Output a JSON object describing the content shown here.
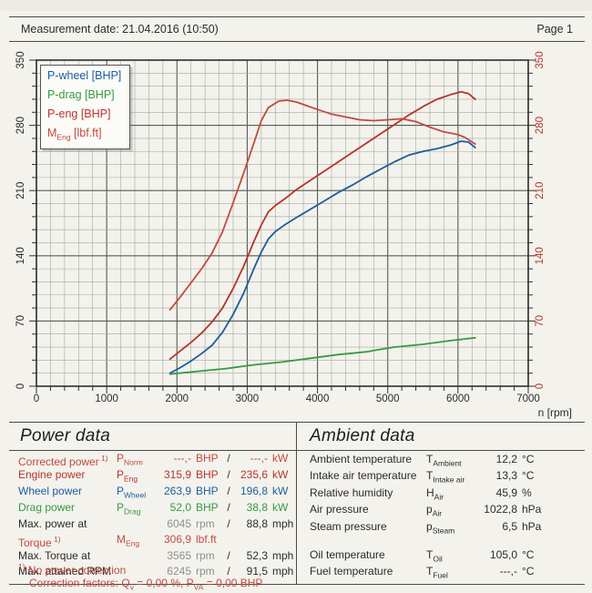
{
  "header": {
    "measurement": "Measurement date: 21.04.2016 (10:50)",
    "page": "Page 1"
  },
  "colors": {
    "red": "#b5342c",
    "red_light": "#c14b40",
    "blue": "#1e5d9e",
    "green": "#379a44",
    "black": "#2b2b2b",
    "dim": "#8f8f8f",
    "grid_minor": "#a4aaa1",
    "grid_major": "#565d55",
    "frame": "#2e2e2e",
    "left_axis_text": "#2b2b2b",
    "right_axis_text": "#b23b32"
  },
  "chart_data": {
    "type": "line",
    "title": "",
    "xlabel": "n [rpm]",
    "ylabel": "",
    "xlim": [
      0,
      7000
    ],
    "ylim": [
      0,
      350
    ],
    "x_minor": 200,
    "x_major": 1000,
    "y_minor": 14,
    "y_major": 70,
    "x_ticks": [
      0,
      1000,
      2000,
      3000,
      4000,
      5000,
      6000,
      7000
    ],
    "y_ticks_left": [
      0,
      70,
      140,
      210,
      280,
      350
    ],
    "y_ticks_right": [
      0,
      70,
      140,
      210,
      280,
      350
    ],
    "grid": true,
    "legend_position": "top-left",
    "legend": [
      {
        "pre": "P-wheel [BHP]"
      },
      {
        "pre": "P-drag [BHP]"
      },
      {
        "pre": "P-eng [BHP]"
      },
      {
        "pre": "M",
        "sub": "Eng",
        "post": " [lbf.ft]"
      }
    ],
    "series": [
      {
        "name": "P-wheel [BHP]",
        "color": "#1e5d9e",
        "points": [
          [
            1900,
            14
          ],
          [
            2050,
            20
          ],
          [
            2200,
            27
          ],
          [
            2350,
            35
          ],
          [
            2500,
            44
          ],
          [
            2650,
            58
          ],
          [
            2800,
            77
          ],
          [
            2950,
            100
          ],
          [
            3100,
            127
          ],
          [
            3200,
            144
          ],
          [
            3300,
            158
          ],
          [
            3400,
            166
          ],
          [
            3550,
            174
          ],
          [
            3700,
            181
          ],
          [
            3900,
            190
          ],
          [
            4100,
            199
          ],
          [
            4300,
            208
          ],
          [
            4500,
            216
          ],
          [
            4700,
            225
          ],
          [
            4900,
            233
          ],
          [
            5100,
            241
          ],
          [
            5300,
            248
          ],
          [
            5500,
            252
          ],
          [
            5700,
            255
          ],
          [
            5900,
            259
          ],
          [
            6045,
            263
          ],
          [
            6150,
            262
          ],
          [
            6245,
            256
          ]
        ]
      },
      {
        "name": "P-drag [BHP]",
        "color": "#379a44",
        "points": [
          [
            1900,
            13
          ],
          [
            2300,
            16
          ],
          [
            2700,
            19
          ],
          [
            3100,
            23
          ],
          [
            3500,
            26
          ],
          [
            3900,
            30
          ],
          [
            4300,
            34
          ],
          [
            4700,
            37
          ],
          [
            4850,
            39
          ],
          [
            5100,
            42
          ],
          [
            5500,
            45
          ],
          [
            5900,
            49
          ],
          [
            6245,
            52
          ]
        ]
      },
      {
        "name": "P-eng [BHP]",
        "color": "#b5342c",
        "points": [
          [
            1900,
            29
          ],
          [
            2050,
            38
          ],
          [
            2200,
            47
          ],
          [
            2350,
            57
          ],
          [
            2500,
            69
          ],
          [
            2650,
            84
          ],
          [
            2800,
            105
          ],
          [
            2950,
            129
          ],
          [
            3100,
            156
          ],
          [
            3200,
            173
          ],
          [
            3300,
            187
          ],
          [
            3400,
            194
          ],
          [
            3550,
            202
          ],
          [
            3700,
            211
          ],
          [
            3900,
            221
          ],
          [
            4100,
            231
          ],
          [
            4300,
            241
          ],
          [
            4500,
            251
          ],
          [
            4700,
            261
          ],
          [
            4900,
            271
          ],
          [
            5100,
            281
          ],
          [
            5300,
            291
          ],
          [
            5500,
            300
          ],
          [
            5700,
            308
          ],
          [
            5900,
            313
          ],
          [
            6045,
            316
          ],
          [
            6150,
            314
          ],
          [
            6245,
            308
          ]
        ]
      },
      {
        "name": "M_Eng [lbf.ft]",
        "color": "#c14b40",
        "points": [
          [
            1900,
            82
          ],
          [
            2050,
            96
          ],
          [
            2200,
            111
          ],
          [
            2350,
            126
          ],
          [
            2500,
            143
          ],
          [
            2650,
            166
          ],
          [
            2800,
            197
          ],
          [
            2950,
            229
          ],
          [
            3100,
            262
          ],
          [
            3200,
            285
          ],
          [
            3300,
            299
          ],
          [
            3450,
            306
          ],
          [
            3565,
            307
          ],
          [
            3700,
            305
          ],
          [
            3850,
            301
          ],
          [
            4000,
            297
          ],
          [
            4200,
            292
          ],
          [
            4400,
            289
          ],
          [
            4600,
            286
          ],
          [
            4800,
            285
          ],
          [
            5000,
            286
          ],
          [
            5200,
            287
          ],
          [
            5400,
            284
          ],
          [
            5600,
            278
          ],
          [
            5800,
            273
          ],
          [
            6000,
            270
          ],
          [
            6100,
            267
          ],
          [
            6245,
            260
          ]
        ]
      }
    ]
  },
  "power": {
    "title": "Power data",
    "rows": [
      {
        "label": "Corrected power",
        "sup": "1)",
        "sym": "P",
        "sub": "Norm",
        "v1": "---,-",
        "u1": "BHP",
        "slash": "/",
        "v2": "---,-",
        "u2": "kW",
        "color": "red_light"
      },
      {
        "label": "Engine power",
        "sym": "P",
        "sub": "Eng",
        "v1": "315,9",
        "u1": "BHP",
        "slash": "/",
        "v2": "235,6",
        "u2": "kW",
        "color": "red"
      },
      {
        "label": "Wheel power",
        "sym": "P",
        "sub": "Wheel",
        "v1": "263,9",
        "u1": "BHP",
        "slash": "/",
        "v2": "196,8",
        "u2": "kW",
        "color": "blue"
      },
      {
        "label": "Drag power",
        "sym": "P",
        "sub": "Drag",
        "v1": "52,0",
        "u1": "BHP",
        "slash": "/",
        "v2": "38,8",
        "u2": "kW",
        "color": "green"
      },
      {
        "label": "Max. power at",
        "v1": "6045",
        "u1": "rpm",
        "slash": "/",
        "v2": "88,8",
        "u2": "mph",
        "color": "black",
        "dim_first": true
      },
      {
        "label": "Torque",
        "sup": "1)",
        "sym": "M",
        "sub": "Eng",
        "v1": "306,9",
        "u1": "lbf.ft",
        "color": "red_light",
        "gap": 4
      },
      {
        "label": "Max. Torque at",
        "v1": "3565",
        "u1": "rpm",
        "slash": "/",
        "v2": "52,3",
        "u2": "mph",
        "color": "black",
        "dim_first": true
      },
      {
        "label": "Max. attained RPM",
        "v1": "6245",
        "u1": "rpm",
        "slash": "/",
        "v2": "91,5",
        "u2": "mph",
        "color": "black",
        "dim_first": true,
        "gap": 4
      }
    ],
    "footnote": {
      "sup": "1)",
      "line1": " No power correction",
      "l2p1": "Correction factors: Q",
      "l2s1": "v",
      "l2p2": " =  0,00 %, P",
      "l2s2": "VA",
      "l2p3": " =  0,00 BHP"
    }
  },
  "ambient": {
    "title": "Ambient data",
    "rows": [
      {
        "label": "Ambient temperature",
        "sym": "T",
        "sub": "Ambient",
        "value": "12,2",
        "unit": "°C"
      },
      {
        "label": "Intake air temperature",
        "sym": "T",
        "sub": "Intake air",
        "value": "13,3",
        "unit": "°C"
      },
      {
        "label": "Relative humidity",
        "sym": "H",
        "sub": "Air",
        "value": "45,9",
        "unit": "%"
      },
      {
        "label": "Air pressure",
        "sym": "p",
        "sub": "Air",
        "value": "1022,8",
        "unit": "hPa"
      },
      {
        "label": "Steam pressure",
        "sym": "p",
        "sub": "Steam",
        "value": "6,5",
        "unit": "hPa"
      },
      {
        "label": "Oil temperature",
        "sym": "T",
        "sub": "Oil",
        "value": "105,0",
        "unit": "°C",
        "gap": 13
      },
      {
        "label": "Fuel temperature",
        "sym": "T",
        "sub": "Fuel",
        "value": "---,-",
        "unit": "°C"
      }
    ]
  }
}
